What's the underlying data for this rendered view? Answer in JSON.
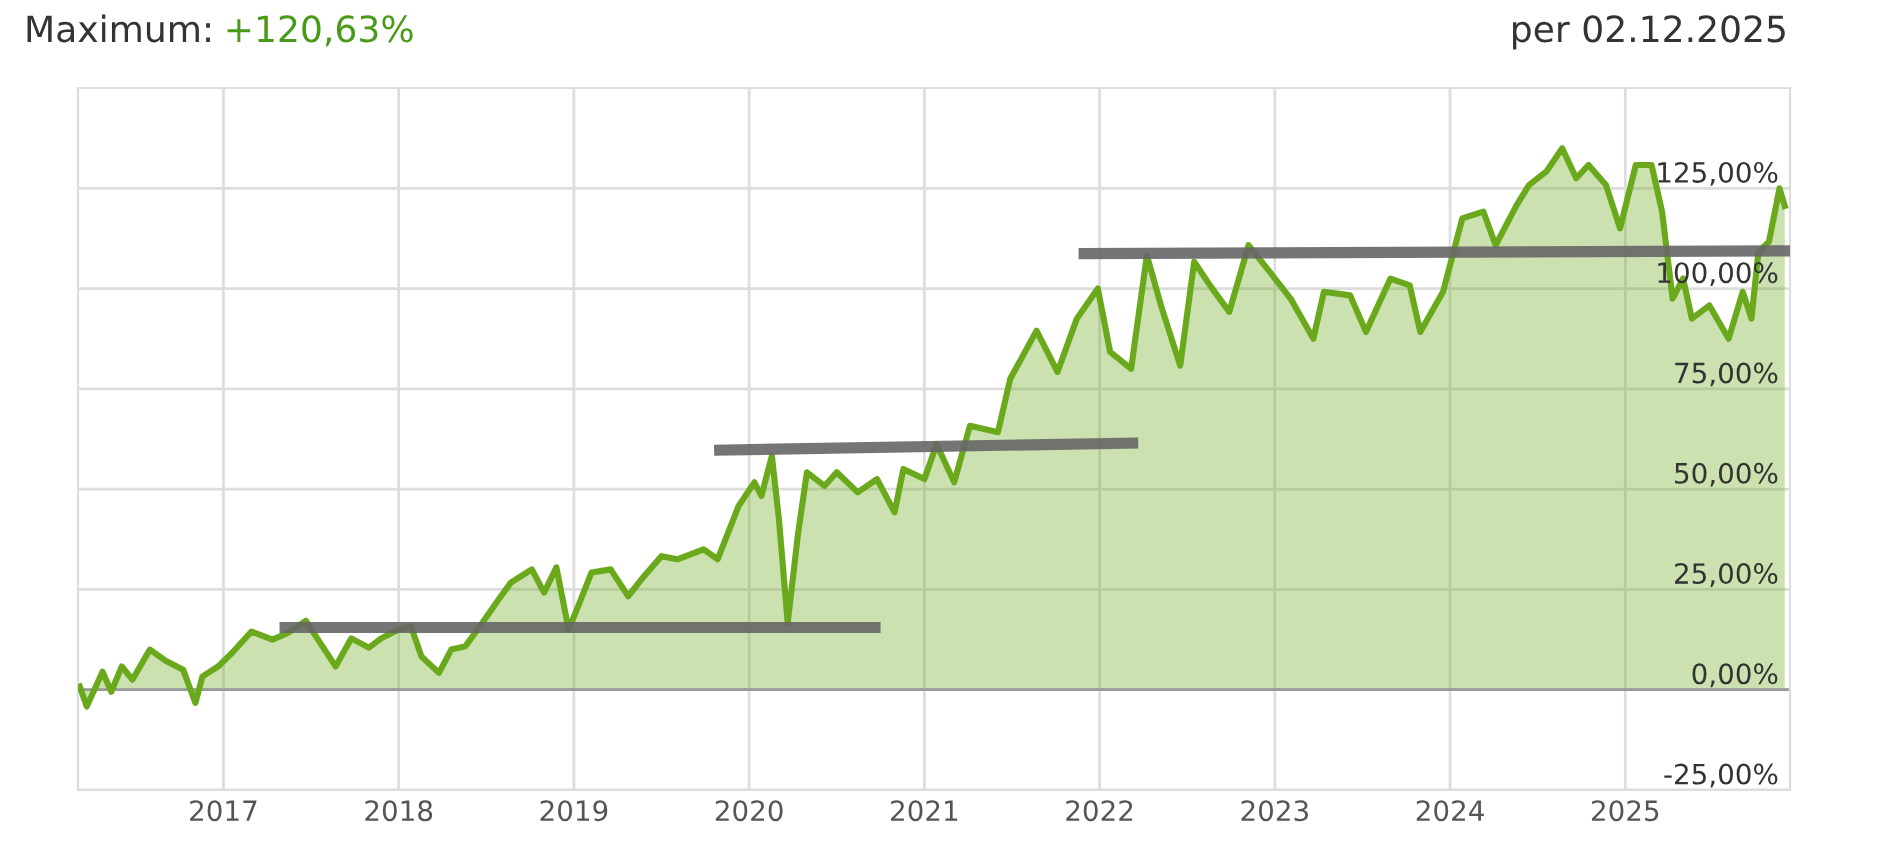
{
  "chart_data": {
    "type": "area",
    "title": "Maximum:",
    "subtitle": "+120,63%",
    "annotations": [
      "per 02.12.2025"
    ],
    "xlim": [
      2016.17,
      2025.94
    ],
    "xticks": [
      2017,
      2018,
      2019,
      2020,
      2021,
      2022,
      2023,
      2024,
      2025
    ],
    "ylim": [
      -25,
      150
    ],
    "yticks": [
      {
        "value": -25,
        "label": "-25,00%"
      },
      {
        "value": 0,
        "label": "0,00%"
      },
      {
        "value": 25,
        "label": "25,00%"
      },
      {
        "value": 50,
        "label": "50,00%"
      },
      {
        "value": 75,
        "label": "75,00%"
      },
      {
        "value": 100,
        "label": "100,00%"
      },
      {
        "value": 125,
        "label": "125,00%"
      }
    ],
    "grid": true,
    "ref_lines": [
      {
        "axis": "y",
        "value": 0,
        "color": "#999999"
      }
    ],
    "series": [
      {
        "type": "area",
        "color": "#6aa91b",
        "x": [
          2016.18,
          2016.22,
          2016.31,
          2016.36,
          2016.42,
          2016.48,
          2016.58,
          2016.67,
          2016.77,
          2016.84,
          2016.88,
          2016.97,
          2017.05,
          2017.16,
          2017.28,
          2017.37,
          2017.47,
          2017.54,
          2017.64,
          2017.73,
          2017.83,
          2017.9,
          2018.0,
          2018.07,
          2018.13,
          2018.23,
          2018.3,
          2018.38,
          2018.47,
          2018.57,
          2018.64,
          2018.76,
          2018.83,
          2018.9,
          2018.97,
          2019.04,
          2019.1,
          2019.21,
          2019.31,
          2019.4,
          2019.5,
          2019.59,
          2019.74,
          2019.82,
          2019.94,
          2020.03,
          2020.07,
          2020.13,
          2020.17,
          2020.22,
          2020.28,
          2020.33,
          2020.43,
          2020.5,
          2020.62,
          2020.73,
          2020.83,
          2020.88,
          2021.0,
          2021.07,
          2021.17,
          2021.26,
          2021.42,
          2021.49,
          2021.64,
          2021.76,
          2021.87,
          2021.99,
          2022.06,
          2022.18,
          2022.27,
          2022.35,
          2022.46,
          2022.54,
          2022.63,
          2022.74,
          2022.85,
          2022.97,
          2023.09,
          2023.22,
          2023.28,
          2023.43,
          2023.52,
          2023.66,
          2023.77,
          2023.83,
          2023.96,
          2024.07,
          2024.19,
          2024.26,
          2024.38,
          2024.45,
          2024.55,
          2024.64,
          2024.72,
          2024.79,
          2024.89,
          2024.97,
          2025.06,
          2025.15,
          2025.21,
          2025.27,
          2025.33,
          2025.38,
          2025.48,
          2025.59,
          2025.67,
          2025.72,
          2025.76,
          2025.82,
          2025.88,
          2025.91
        ],
        "values": [
          0.8,
          -4.2,
          4.5,
          -0.5,
          5.8,
          2.5,
          10,
          7.2,
          5,
          -3.3,
          3.3,
          5.8,
          9.2,
          14.5,
          12.5,
          14.2,
          17.2,
          12.5,
          5.8,
          12.8,
          10.5,
          12.8,
          15,
          15.8,
          8.3,
          4.2,
          10,
          10.8,
          16.2,
          22.5,
          26.7,
          30,
          24.2,
          30.5,
          15,
          22.5,
          29.2,
          30,
          23.3,
          28.3,
          33.3,
          32.5,
          35,
          32.5,
          45.8,
          51.7,
          48.3,
          58.3,
          42.5,
          16.7,
          39.2,
          54.2,
          50.8,
          54.2,
          49.2,
          52.5,
          44.2,
          55,
          52.5,
          61.2,
          51.7,
          65.8,
          64.2,
          77.5,
          89.5,
          79.2,
          92.5,
          100,
          84.2,
          80,
          108.3,
          95.8,
          80.8,
          106.7,
          100.8,
          94.2,
          110.8,
          104.2,
          97.5,
          87.5,
          99.2,
          98.3,
          89.2,
          102.5,
          100.8,
          89.2,
          99.2,
          117.5,
          119.2,
          110.8,
          120.8,
          125.8,
          129.2,
          135,
          127.5,
          130.8,
          125.8,
          115,
          130.8,
          130.8,
          119.2,
          97.5,
          102.5,
          92.5,
          95.8,
          87.5,
          99.2,
          92.5,
          109.2,
          111.7,
          125,
          120.6
        ]
      },
      {
        "type": "line",
        "color": "#666666",
        "x": [
          2017.32,
          2020.75
        ],
        "values": [
          15.5,
          15.5
        ]
      },
      {
        "type": "line",
        "color": "#666666",
        "x": [
          2019.8,
          2022.22
        ],
        "values": [
          59.7,
          61.5
        ]
      },
      {
        "type": "line",
        "color": "#666666",
        "x": [
          2021.88,
          2025.94
        ],
        "values": [
          108.7,
          109.4
        ]
      }
    ]
  }
}
